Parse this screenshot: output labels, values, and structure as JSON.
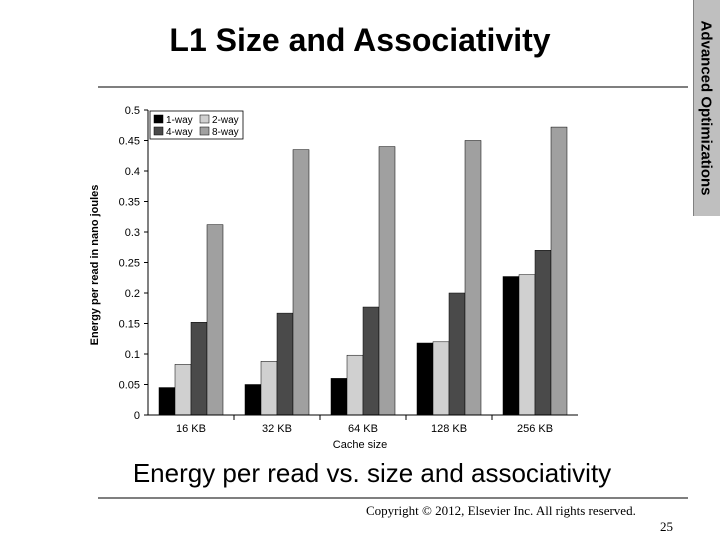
{
  "slide": {
    "title": "L1 Size and Associativity",
    "side_tab": "Advanced Optimizations",
    "caption": "Energy per read vs. size and associativity",
    "copyright": "Copyright © 2012, Elsevier Inc. All rights reserved.",
    "page_number": "25"
  },
  "chart_data": {
    "type": "bar",
    "title": "",
    "xlabel": "Cache size",
    "ylabel": "Energy per read in nano joules",
    "categories": [
      "16 KB",
      "32 KB",
      "64 KB",
      "128 KB",
      "256 KB"
    ],
    "ylim": [
      0,
      0.5
    ],
    "yticks": [
      0,
      0.05,
      0.1,
      0.15,
      0.2,
      0.25,
      0.3,
      0.35,
      0.4,
      0.45,
      0.5
    ],
    "ytick_labels": [
      "0",
      "0.05",
      "0.1",
      "0.15",
      "0.2",
      "0.25",
      "0.3",
      "0.35",
      "0.4",
      "0.45",
      "0.5"
    ],
    "legend_position": "top-left",
    "series": [
      {
        "name": "1-way",
        "color": "#000000",
        "values": [
          0.045,
          0.05,
          0.06,
          0.118,
          0.227
        ]
      },
      {
        "name": "2-way",
        "color": "#d0d0d0",
        "values": [
          0.083,
          0.088,
          0.098,
          0.12,
          0.23
        ]
      },
      {
        "name": "4-way",
        "color": "#4a4a4a",
        "values": [
          0.152,
          0.167,
          0.177,
          0.2,
          0.27
        ]
      },
      {
        "name": "8-way",
        "color": "#a0a0a0",
        "values": [
          0.312,
          0.435,
          0.44,
          0.45,
          0.472
        ]
      }
    ]
  }
}
